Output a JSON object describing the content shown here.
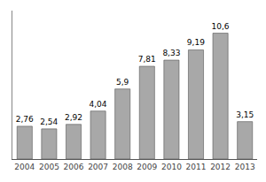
{
  "chart_data": {
    "type": "bar",
    "categories": [
      "2004",
      "2005",
      "2006",
      "2007",
      "2008",
      "2009",
      "2010",
      "2011",
      "2012",
      "2013"
    ],
    "values": [
      2.76,
      2.54,
      2.92,
      4.04,
      5.9,
      7.81,
      8.33,
      9.19,
      10.6,
      3.15
    ],
    "value_labels": [
      "2,76",
      "2,54",
      "2,92",
      "4,04",
      "5,9",
      "7,81",
      "8,33",
      "9,19",
      "10,6",
      "3,15"
    ],
    "data_labels": true,
    "color": "#a8a8a8",
    "ylim": [
      0,
      12.5
    ],
    "grid": false,
    "tick_labels": "x"
  }
}
